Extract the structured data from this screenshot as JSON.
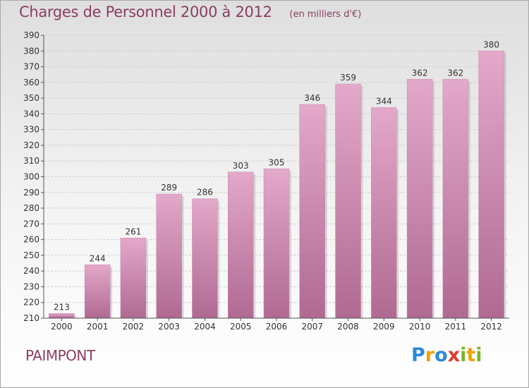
{
  "title": "Charges de Personnel 2000 à 2012",
  "unit": "(en milliers d'€)",
  "commune": "PAIMPONT",
  "logo": {
    "text": "Proxiti",
    "colors": [
      "#2d8ad6",
      "#f0a100",
      "#e2382f",
      "#79b52a"
    ]
  },
  "chart_data": {
    "type": "bar",
    "title": "Charges de Personnel 2000 à 2012",
    "subtitle": "(en milliers d'€)",
    "categories": [
      "2000",
      "2001",
      "2002",
      "2003",
      "2004",
      "2005",
      "2006",
      "2007",
      "2008",
      "2009",
      "2010",
      "2011",
      "2012"
    ],
    "values": [
      213,
      244,
      261,
      289,
      286,
      303,
      305,
      346,
      359,
      344,
      362,
      362,
      380
    ],
    "ylim": [
      210,
      390
    ],
    "yticks": [
      210,
      220,
      230,
      240,
      250,
      260,
      270,
      280,
      290,
      300,
      310,
      320,
      330,
      340,
      350,
      360,
      370,
      380,
      390
    ],
    "grid": true,
    "bar_color": "#c06c98",
    "data_labels": true
  }
}
